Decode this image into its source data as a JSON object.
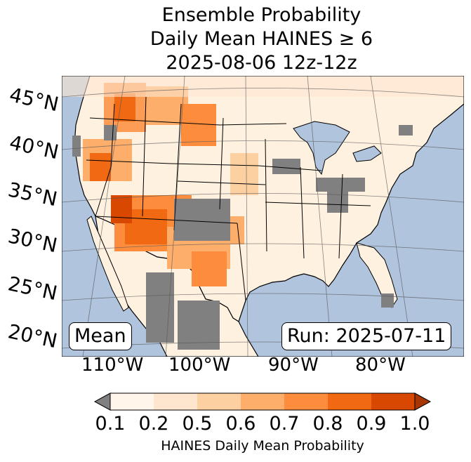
{
  "title": {
    "line1": "Ensemble Probability",
    "line2": "Daily Mean HAINES ≥ 6",
    "line3": "2025-08-06 12z-12z"
  },
  "map": {
    "lat_labels": [
      "45°N",
      "40°N",
      "35°N",
      "30°N",
      "25°N",
      "20°N"
    ],
    "lon_labels": [
      "110°W",
      "100°W",
      "90°W",
      "80°W"
    ],
    "stat_label": "Mean",
    "run_label": "Run: 2025-07-11",
    "colors": {
      "ocean": "#b0c4de",
      "land": "#ffffff",
      "nodata": "#808080"
    }
  },
  "colorbar": {
    "label": "HAINES Daily Mean Probability",
    "ticks": [
      "0.1",
      "0.2",
      "0.5",
      "0.6",
      "0.7",
      "0.8",
      "0.9",
      "1.0"
    ],
    "colors": [
      "#fff5eb",
      "#fee6ce",
      "#fdd0a2",
      "#fdae6b",
      "#fd8d3c",
      "#f16913",
      "#d94801",
      "#a63603"
    ],
    "under_color": "#808080"
  }
}
